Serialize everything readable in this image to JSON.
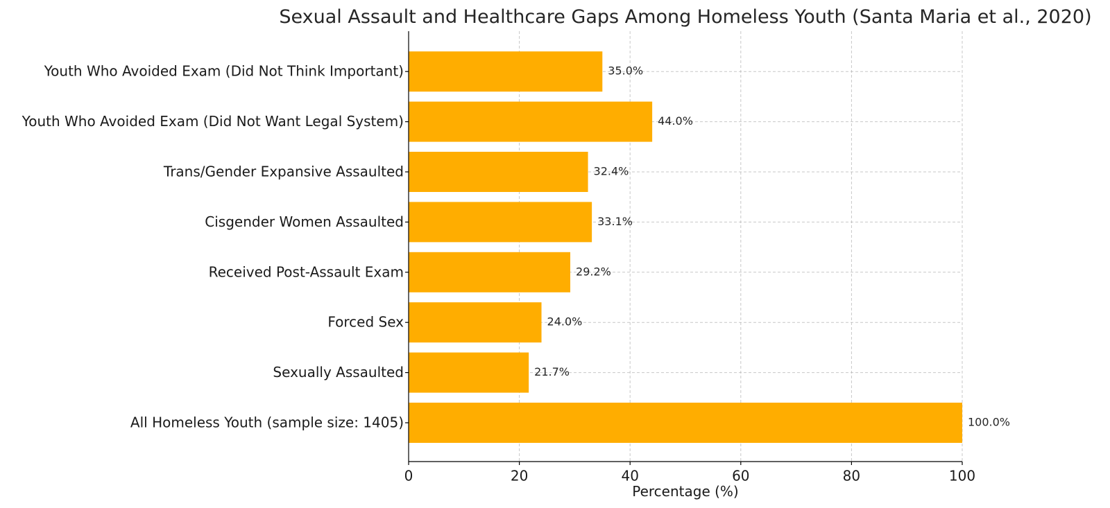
{
  "chart_data": {
    "type": "bar",
    "orientation": "horizontal",
    "title": "Sexual Assault and Healthcare Gaps Among Homeless Youth (Santa Maria et al., 2020)",
    "xlabel": "Percentage (%)",
    "ylabel": "",
    "xlim": [
      0,
      100
    ],
    "xticks": [
      0,
      20,
      40,
      60,
      80,
      100
    ],
    "grid": true,
    "bar_color": "#ffad00",
    "categories": [
      "All Homeless Youth (sample size: 1405)",
      "Sexually Assaulted",
      "Forced Sex",
      "Received Post-Assault Exam",
      "Cisgender Women Assaulted",
      "Trans/Gender Expansive Assaulted",
      "Youth Who Avoided Exam (Did Not Want Legal System)",
      "Youth Who Avoided Exam (Did Not Think Important)"
    ],
    "values": [
      100.0,
      21.7,
      24.0,
      29.2,
      33.1,
      32.4,
      44.0,
      35.0
    ],
    "value_labels": [
      "100.0%",
      "21.7%",
      "24.0%",
      "29.2%",
      "33.1%",
      "32.4%",
      "44.0%",
      "35.0%"
    ]
  }
}
